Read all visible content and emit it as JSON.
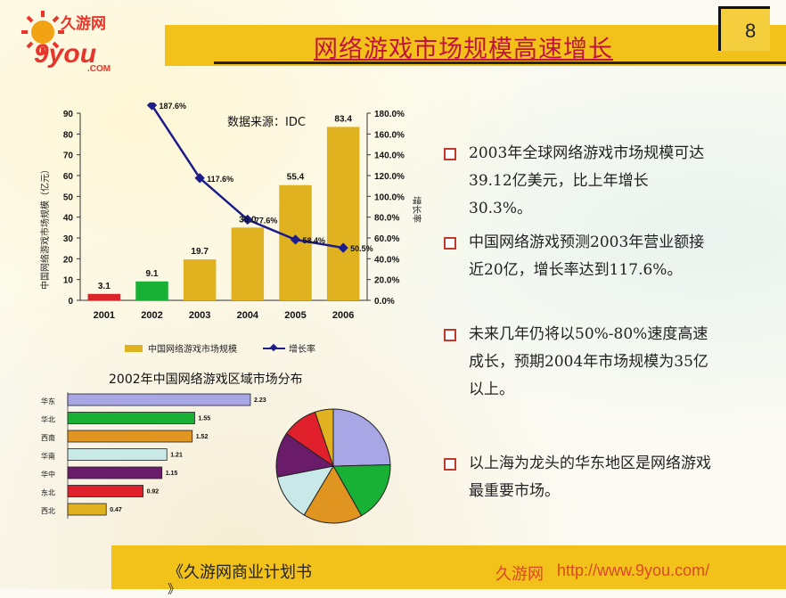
{
  "logo": {
    "brand_cn": "久游网",
    "brand_latin": "9you",
    "domain": ".COM"
  },
  "page_title": "网络游戏市场规模高速增长",
  "page_number": "8",
  "bullets": [
    "2003年全球网络游戏市场规模可达39.12亿美元，比上年增长30.3%。",
    "中国网络游戏预测2003年营业额接近20亿，增长率达到117.6%。",
    "未来几年仍将以50%-80%速度高速成长，预期2004年市场规模为35亿以上。",
    "以上海为龙头的华东地区是网络游戏最重要市场。"
  ],
  "footer": {
    "left": "《久游网商业计划书",
    "left_cont": "》",
    "right_cn": "久游网",
    "right_url": "http://www.9you.com/"
  },
  "chart_data": [
    {
      "type": "bar",
      "title": "",
      "source_note": "数据来源：IDC",
      "categories": [
        "2001",
        "2002",
        "2003",
        "2004",
        "2005",
        "2006"
      ],
      "series": [
        {
          "name": "中国网络游戏市场规模",
          "values": [
            3.1,
            9.1,
            19.7,
            35.0,
            55.4,
            83.4
          ]
        },
        {
          "name": "增长率",
          "type": "line",
          "values": [
            null,
            187.6,
            117.6,
            77.6,
            58.4,
            50.5
          ]
        }
      ],
      "value_labels": [
        "3.1",
        "9.1",
        "19.7",
        "35.0",
        "55.4",
        "83.4"
      ],
      "growth_labels": [
        "",
        "187.6%",
        "117.6%",
        "77.6%",
        "58.4%",
        "50.5%"
      ],
      "bar_colors": [
        "#d9252a",
        "#19b135",
        "#e0b21f",
        "#e0b21f",
        "#e0b21f",
        "#e0b21f"
      ],
      "line_color": "#1c1c8a",
      "ylabel": "中国网络游戏市场规模（亿元）",
      "y2label": "增长率",
      "ylim": [
        0,
        90
      ],
      "yticks": [
        "0",
        "10",
        "20",
        "30",
        "40",
        "50",
        "60",
        "70",
        "80",
        "90"
      ],
      "y2lim": [
        0,
        180
      ],
      "y2ticks": [
        "0.0%",
        "20.0%",
        "40.0%",
        "60.0%",
        "80.0%",
        "100.0%",
        "120.0%",
        "140.0%",
        "160.0%",
        "180.0%"
      ],
      "legend": {
        "placement": "bottom",
        "items": [
          "中国网络游戏市场规模",
          "增长率"
        ]
      },
      "grid": false
    },
    {
      "type": "bar",
      "orientation": "horizontal",
      "title": "2002年中国网络游戏区域市场分布",
      "categories": [
        "华东",
        "华北",
        "西南",
        "华南",
        "华中",
        "东北",
        "西北"
      ],
      "values": [
        2.23,
        1.55,
        1.52,
        1.21,
        1.15,
        0.92,
        0.47
      ],
      "value_labels": [
        "2.23",
        "1.55",
        "1.52",
        "1.21",
        "1.15",
        "0.92",
        "0.47"
      ],
      "colors": [
        "#a9a6e6",
        "#19b135",
        "#e09520",
        "#c9e8e8",
        "#6a1c6a",
        "#e0202a",
        "#e0b21f"
      ]
    },
    {
      "type": "pie",
      "labels": [
        "华东",
        "华北",
        "西南",
        "华南",
        "华中",
        "东北",
        "西北"
      ],
      "values": [
        2.23,
        1.55,
        1.52,
        1.21,
        1.15,
        0.92,
        0.47
      ],
      "colors": [
        "#a9a6e6",
        "#19b135",
        "#e09520",
        "#c9e8e8",
        "#6a1c6a",
        "#e0202a",
        "#e0b21f"
      ]
    }
  ]
}
